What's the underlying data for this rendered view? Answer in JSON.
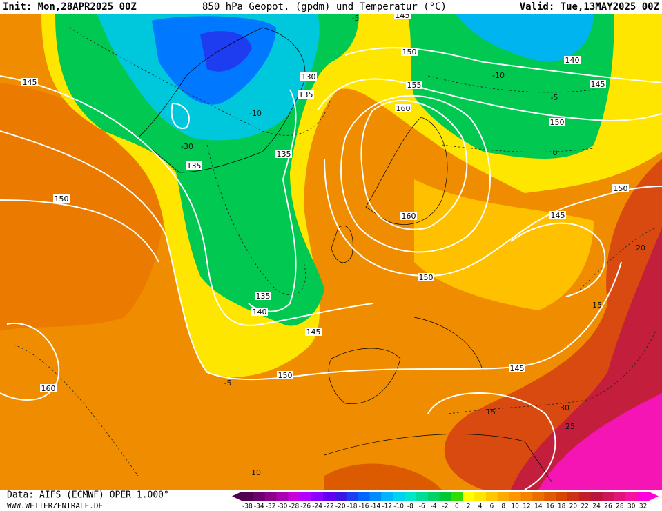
{
  "header": {
    "init": "Init: Mon,28APR2025 00Z",
    "title": "850 hPa Geopot. (gpdm) und Temperatur (°C)",
    "valid": "Valid: Tue,13MAY2025 00Z"
  },
  "footer": {
    "data_source": "Data: AIFS (ECMWF) OPER 1.000°",
    "website": "WWW.WETTERZENTRALE.DE"
  },
  "colorbar": {
    "labels": [
      "-38",
      "-34",
      "-32",
      "-30",
      "-28",
      "-26",
      "-24",
      "-22",
      "-20",
      "-18",
      "-16",
      "-14",
      "-12",
      "-10",
      "-8",
      "-6",
      "-4",
      "-2",
      "0",
      "2",
      "4",
      "6",
      "8",
      "10",
      "12",
      "14",
      "16",
      "18",
      "20",
      "22",
      "24",
      "26",
      "28",
      "30",
      "32"
    ],
    "colors": [
      "#500050",
      "#6e006e",
      "#8c008c",
      "#aa00b4",
      "#c800dc",
      "#b400ff",
      "#8c00ff",
      "#6400f0",
      "#3c14e6",
      "#1e3cf0",
      "#0064ff",
      "#008cff",
      "#00b4ff",
      "#00d2f0",
      "#00e6c8",
      "#00dc96",
      "#00d264",
      "#00c832",
      "#32dc00",
      "#ffff00",
      "#ffe600",
      "#ffc800",
      "#ffaa00",
      "#ff9600",
      "#f58200",
      "#eb6e00",
      "#e15a00",
      "#d74600",
      "#cd3214",
      "#c31e28",
      "#b9143c",
      "#cd145a",
      "#e11478",
      "#f514a0",
      "#ff00dc"
    ]
  },
  "map": {
    "geopotential_labels": [
      145,
      145,
      150,
      140,
      145,
      130,
      135,
      155,
      160,
      150,
      135,
      135,
      150,
      150,
      160,
      145,
      150,
      135,
      140,
      145,
      150,
      145,
      160
    ],
    "temperature_labels": [
      -5,
      -10,
      -5,
      0,
      -10,
      -30,
      20,
      15,
      -5,
      15,
      30,
      25,
      10
    ]
  }
}
